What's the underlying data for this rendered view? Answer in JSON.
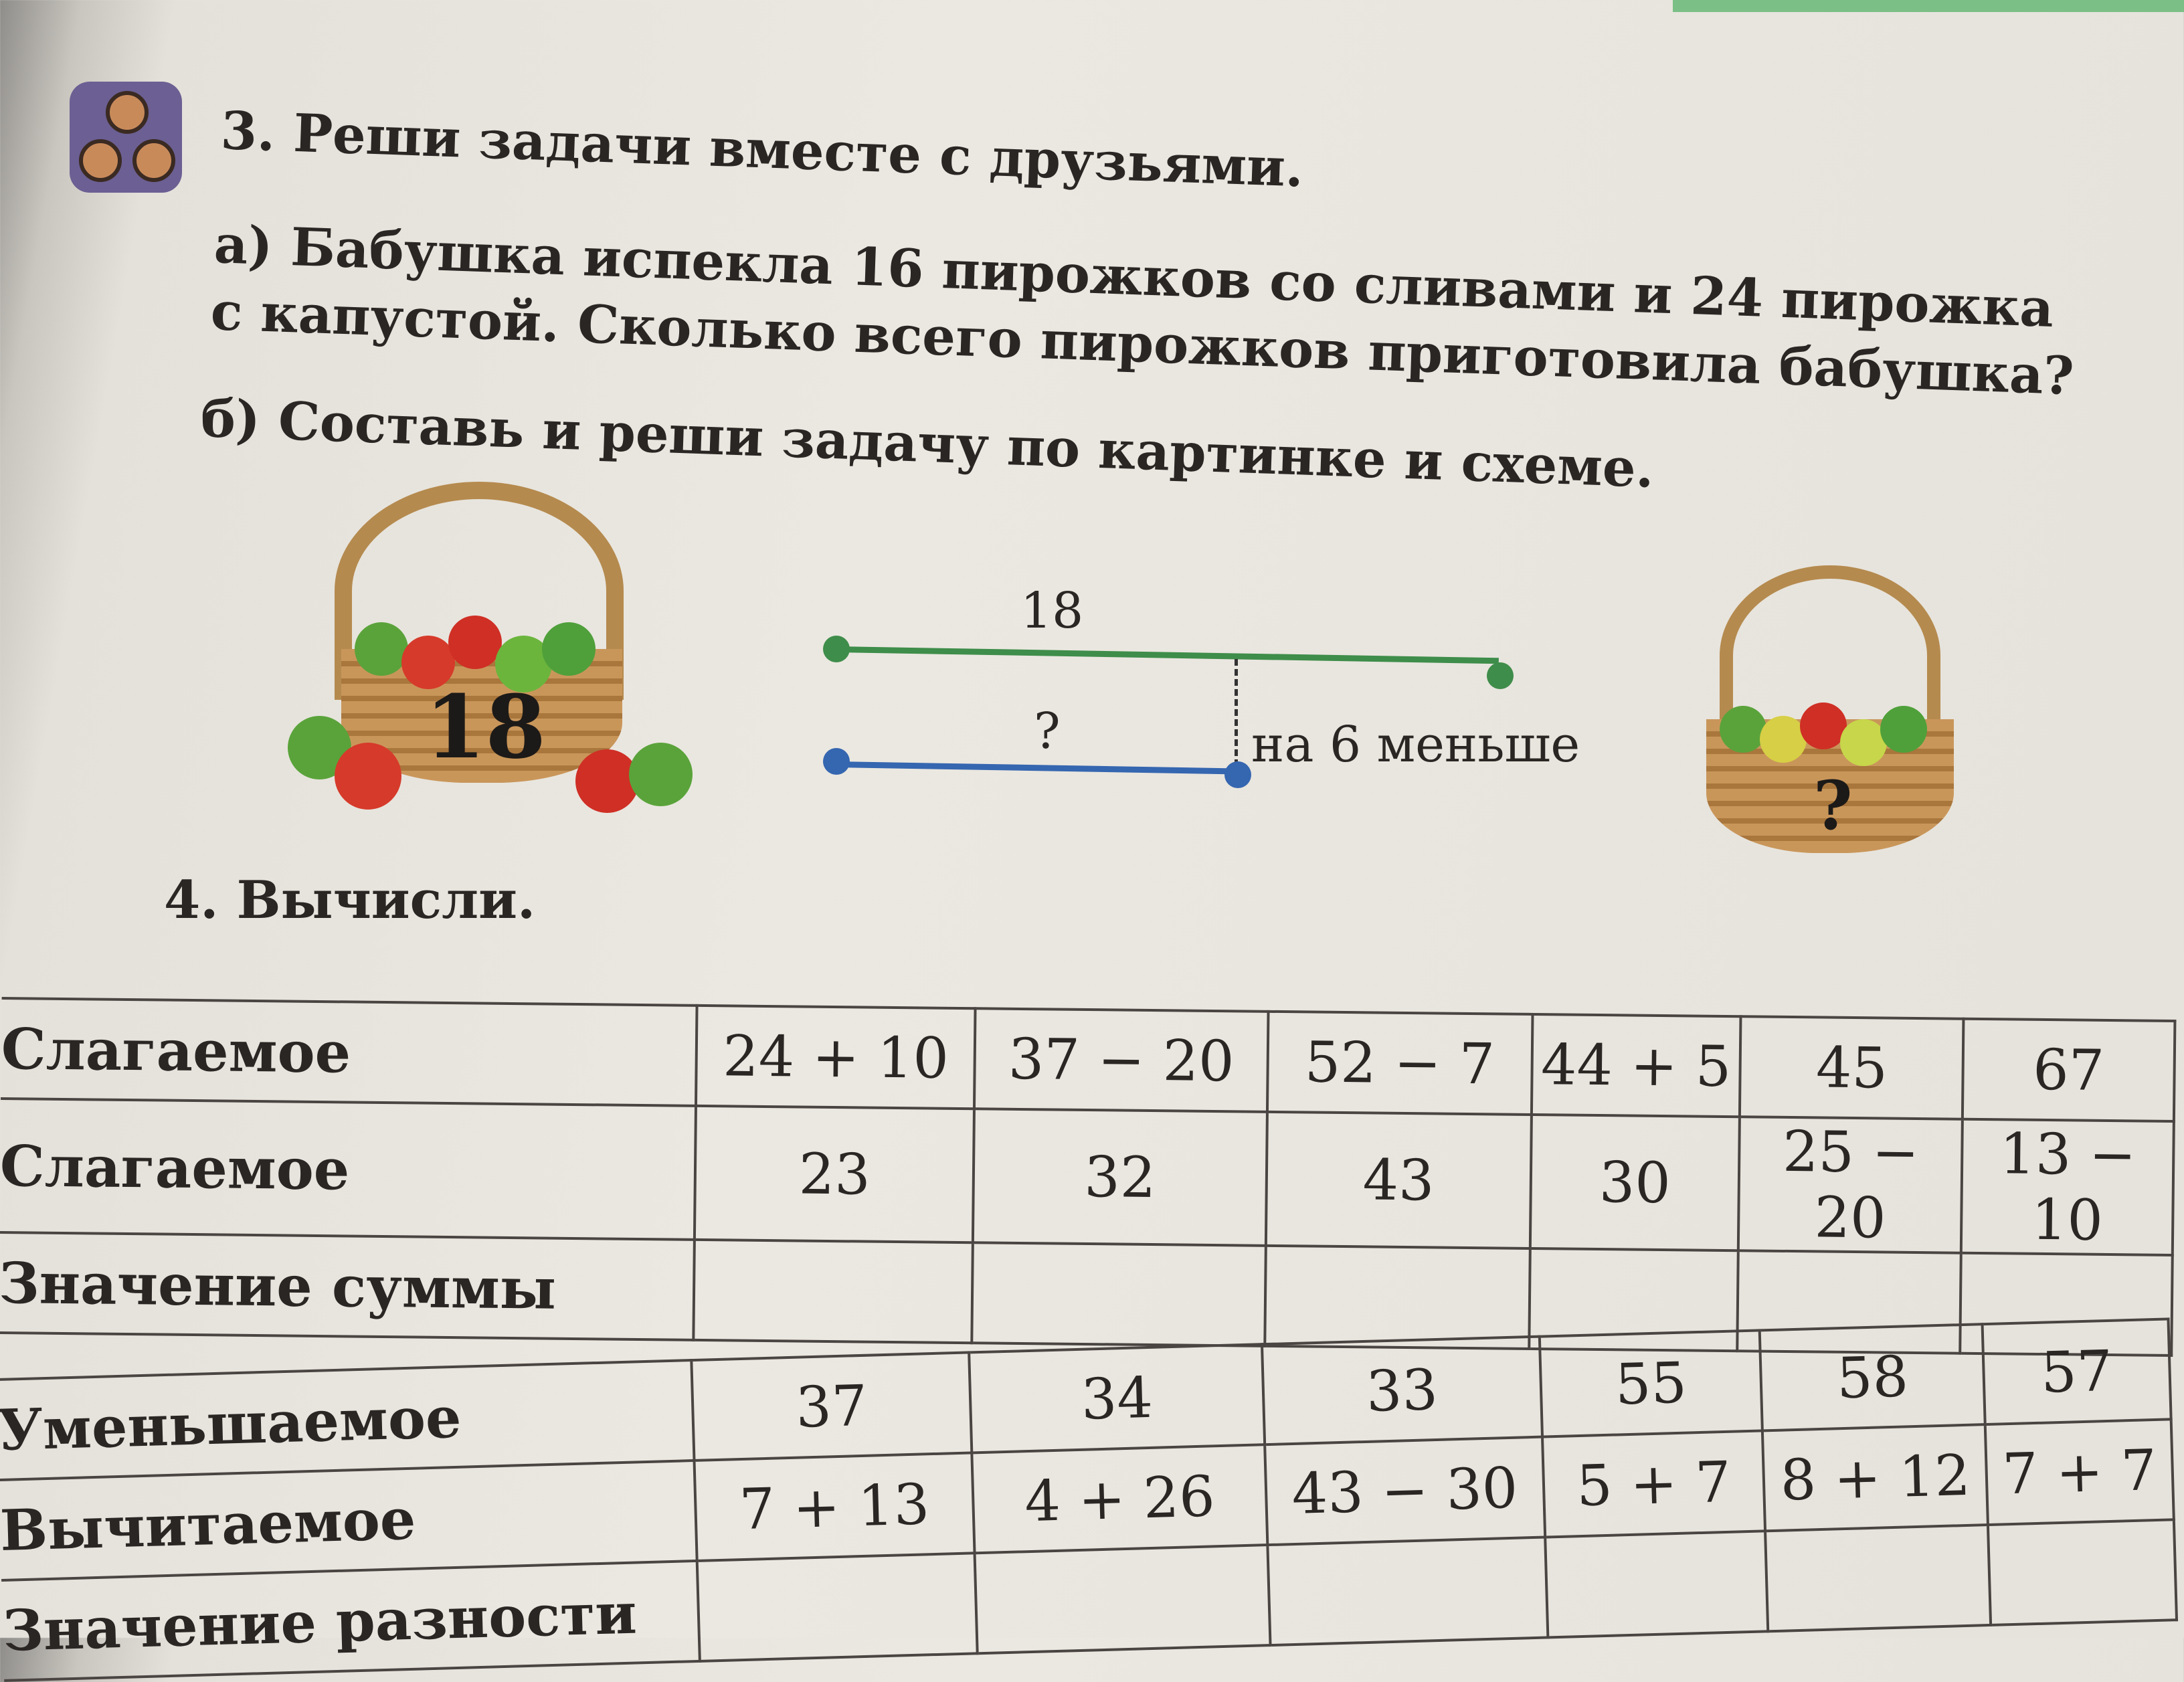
{
  "task3": {
    "title": "3. Реши задачи вместе с друзьями.",
    "a_line1": "а) Бабушка  испекла 16 пирожков со сливами и 24 пирожка",
    "a_line2": "с капустой. Сколько всего пирожков приготовила бабушка?",
    "b_line": "б) Составь и реши задачу по картинке и схеме.",
    "left_basket_number": "18",
    "right_basket_number": "?",
    "scheme": {
      "top_label": "18",
      "bottom_label": "?",
      "difference_label": "на 6 меньше",
      "top_color": "#3e8d4a",
      "bottom_color": "#3566b0"
    }
  },
  "task4": {
    "title": "4. Вычисли.",
    "table1": {
      "rows": [
        {
          "label": "Слагаемое",
          "cells": [
            "24 + 10",
            "37 − 20",
            "52 − 7",
            "44 + 5",
            "45",
            "67"
          ]
        },
        {
          "label": "Слагаемое",
          "cells": [
            "23",
            "32",
            "43",
            "30",
            "25 − 20",
            "13 − 10"
          ]
        },
        {
          "label": "Значение суммы",
          "cells": [
            "",
            "",
            "",
            "",
            "",
            ""
          ]
        }
      ]
    },
    "table2": {
      "rows": [
        {
          "label": "Уменьшаемое",
          "cells": [
            "37",
            "34",
            "33",
            "55",
            "58",
            "57"
          ]
        },
        {
          "label": "Вычитаемое",
          "cells": [
            "7 + 13",
            "4 + 26",
            "43 − 30",
            "5 + 7",
            "8 + 12",
            "7 + 7"
          ]
        },
        {
          "label": "Значение разности",
          "cells": [
            "",
            "",
            "",
            "",
            "",
            ""
          ]
        }
      ]
    }
  }
}
